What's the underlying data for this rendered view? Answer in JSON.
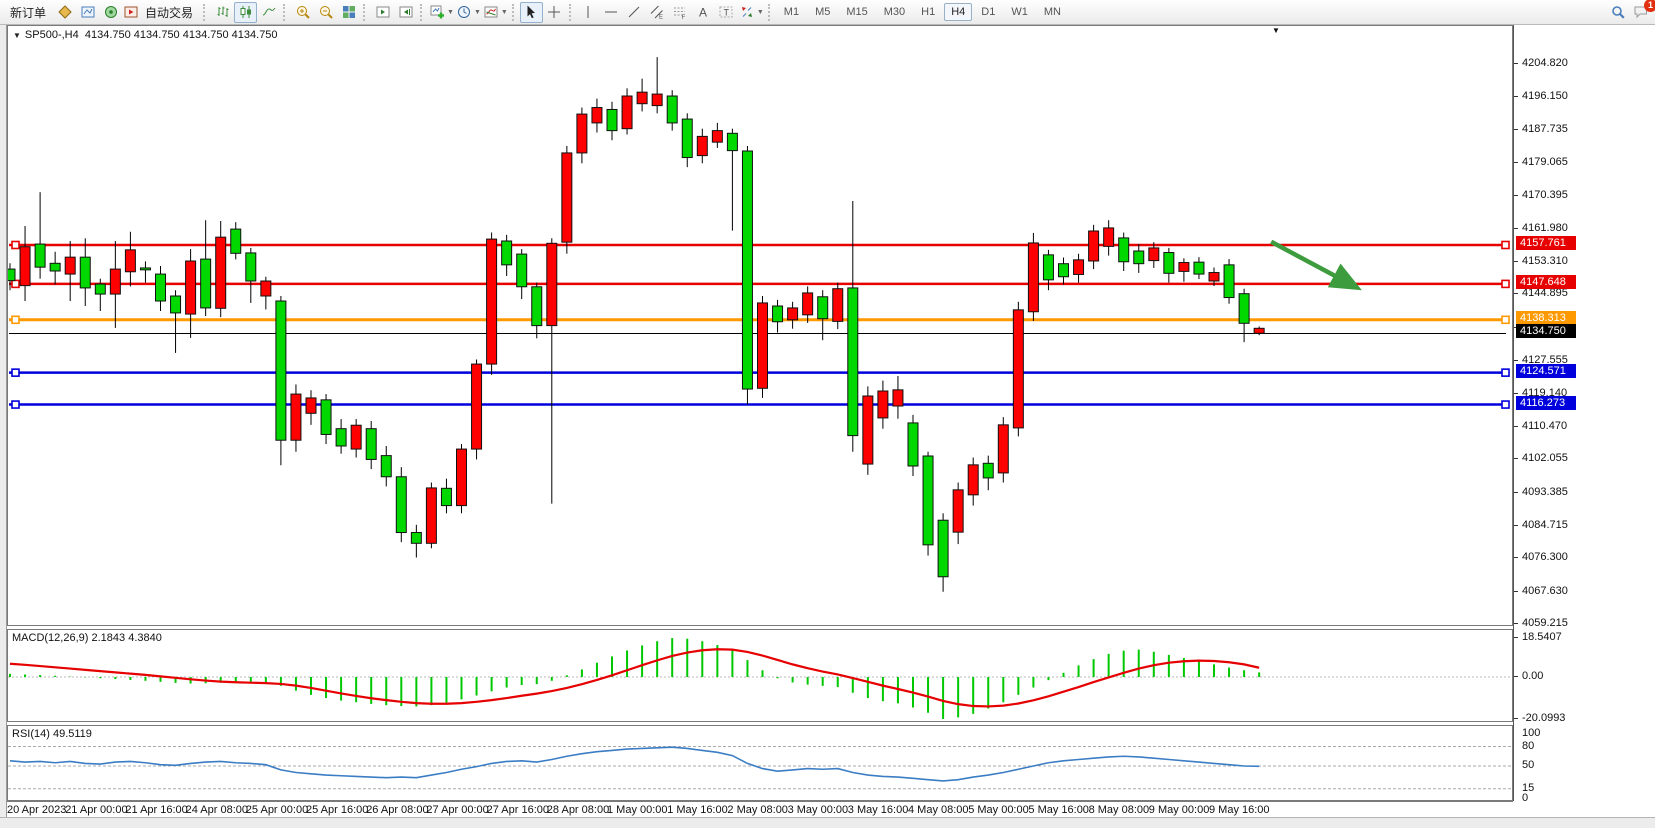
{
  "toolbar": {
    "items": [
      {
        "type": "button",
        "name": "new-order-button",
        "label": "新订单"
      },
      {
        "type": "icon",
        "name": "market-watch-icon"
      },
      {
        "type": "icon",
        "name": "data-window-icon"
      },
      {
        "type": "icon",
        "name": "signals-icon"
      },
      {
        "type": "iconlabel",
        "name": "autotrading-button",
        "icon": "autotrading-icon",
        "label": "自动交易"
      },
      {
        "type": "sep"
      },
      {
        "type": "icon",
        "name": "bar-chart-icon"
      },
      {
        "type": "icon",
        "name": "candlestick-chart-icon",
        "active": true
      },
      {
        "type": "icon",
        "name": "line-chart-icon"
      },
      {
        "type": "sep"
      },
      {
        "type": "icon",
        "name": "zoom-in-icon"
      },
      {
        "type": "icon",
        "name": "zoom-out-icon"
      },
      {
        "type": "icon",
        "name": "tile-windows-icon"
      },
      {
        "type": "sep"
      },
      {
        "type": "icon",
        "name": "auto-scroll-icon"
      },
      {
        "type": "icon",
        "name": "chart-shift-icon"
      },
      {
        "type": "sep"
      },
      {
        "type": "icon",
        "name": "new-chart-icon",
        "dropdown": true
      },
      {
        "type": "icon",
        "name": "periods-clock-icon",
        "dropdown": true
      },
      {
        "type": "icon",
        "name": "indicators-icon",
        "dropdown": true
      },
      {
        "type": "sep"
      },
      {
        "type": "icon",
        "name": "cursor-icon",
        "active": true
      },
      {
        "type": "icon",
        "name": "crosshair-icon"
      },
      {
        "type": "sep"
      },
      {
        "type": "icon",
        "name": "vertical-line-icon"
      },
      {
        "type": "icon",
        "name": "horizontal-line-icon"
      },
      {
        "type": "icon",
        "name": "trendline-icon"
      },
      {
        "type": "icon",
        "name": "equidistant-channel-icon"
      },
      {
        "type": "icon",
        "name": "fibonacci-icon"
      },
      {
        "type": "icon",
        "name": "text-icon"
      },
      {
        "type": "icon",
        "name": "text-label-icon"
      },
      {
        "type": "icon",
        "name": "arrows-icon",
        "dropdown": true
      },
      {
        "type": "sep"
      },
      {
        "type": "timeframes"
      },
      {
        "type": "spacer"
      },
      {
        "type": "icon",
        "name": "search-icon"
      },
      {
        "type": "icon",
        "name": "chat-icon",
        "badge": "1"
      }
    ],
    "timeframes": {
      "options": [
        "M1",
        "M5",
        "M15",
        "M30",
        "H1",
        "H4",
        "D1",
        "W1",
        "MN"
      ],
      "active": "H4"
    }
  },
  "chart": {
    "title": {
      "collapse_glyph": "▼",
      "symbol_period": "SP500-,H4",
      "ohlc": "4134.750 4134.750 4134.750 4134.750"
    },
    "shift_marker_glyph": "▼",
    "price_axis_ticks": [
      "4204.820",
      "4196.150",
      "4187.735",
      "4179.065",
      "4170.395",
      "4161.980",
      "4153.310",
      "4144.895",
      "4136.225",
      "4127.555",
      "4119.140",
      "4110.470",
      "4102.055",
      "4093.385",
      "4084.715",
      "4076.300",
      "4067.630",
      "4059.215"
    ],
    "hlines": [
      {
        "name": "resistance-line-1",
        "price": "4157.761",
        "color": "#e60000",
        "width": 2.5,
        "handles": true
      },
      {
        "name": "resistance-line-2",
        "price": "4147.648",
        "color": "#e60000",
        "width": 2.5,
        "handles": true
      },
      {
        "name": "pivot-line",
        "price": "4138.313",
        "color": "#ff9900",
        "width": 3,
        "handles": true
      },
      {
        "name": "current-price-line",
        "price": "4134.750",
        "color": "#000000",
        "width": 1,
        "handles": false
      },
      {
        "name": "support-line-1",
        "price": "4124.571",
        "color": "#0000dd",
        "width": 2.5,
        "handles": true
      },
      {
        "name": "support-line-2",
        "price": "4116.273",
        "color": "#0000dd",
        "width": 2.5,
        "handles": true
      }
    ],
    "colors": {
      "bull": "#ff0000",
      "bear": "#00d800",
      "wick": "#000000",
      "arrow": "#3d9c3d"
    },
    "arrow_annotation": {
      "from_index": 83.8,
      "from_price": 4158.6,
      "to_index": 89.3,
      "to_price": 4147.1
    },
    "candles": [
      [
        4151.5,
        4153,
        4146,
        4148.5
      ],
      [
        4147.2,
        4162.7,
        4143.2,
        4157.3
      ],
      [
        4158,
        4171.5,
        4149,
        4152
      ],
      [
        4153,
        4156,
        4147.5,
        4151
      ],
      [
        4150.2,
        4158.8,
        4143.2,
        4154.6
      ],
      [
        4154.6,
        4159.5,
        4141.9,
        4146.6
      ],
      [
        4147.6,
        4149,
        4140.6,
        4145
      ],
      [
        4145,
        4158.8,
        4136.2,
        4151.5
      ],
      [
        4150.8,
        4161.2,
        4147,
        4156.5
      ],
      [
        4151.8,
        4153.5,
        4148,
        4151.3
      ],
      [
        4150.2,
        4152.3,
        4140.6,
        4143.2
      ],
      [
        4144.5,
        4146,
        4129.7,
        4140.1
      ],
      [
        4139.8,
        4156.7,
        4133.6,
        4153.6
      ],
      [
        4154.1,
        4164.2,
        4139.3,
        4141.4
      ],
      [
        4141.3,
        4164,
        4139,
        4159.8
      ],
      [
        4161.9,
        4163.7,
        4154,
        4155.6
      ],
      [
        4155.7,
        4157,
        4142.7,
        4148.4
      ],
      [
        4144.5,
        4149.5,
        4141,
        4148.4
      ],
      [
        4143.2,
        4144.5,
        4100.5,
        4107
      ],
      [
        4107,
        4121.5,
        4104,
        4119
      ],
      [
        4114,
        4120,
        4111,
        4118
      ],
      [
        4117.5,
        4119,
        4106,
        4108.5
      ],
      [
        4110,
        4112.5,
        4103.5,
        4105.5
      ],
      [
        4104.7,
        4112.5,
        4102.5,
        4110.9
      ],
      [
        4110,
        4112,
        4099.5,
        4102
      ],
      [
        4103,
        4105.5,
        4095,
        4097.5
      ],
      [
        4097.5,
        4100,
        4080.5,
        4083
      ],
      [
        4083,
        4085,
        4076.5,
        4080.2
      ],
      [
        4080.2,
        4096,
        4078.9,
        4094.6
      ],
      [
        4094.5,
        4097,
        4088,
        4090
      ],
      [
        4090,
        4106,
        4088,
        4104.7
      ],
      [
        4104.7,
        4128,
        4102,
        4126.8
      ],
      [
        4126.8,
        4161,
        4124,
        4159.3
      ],
      [
        4158.8,
        4160.4,
        4149.7,
        4152.6
      ],
      [
        4155.4,
        4156.7,
        4143.7,
        4146.9
      ],
      [
        4146.9,
        4148,
        4133.5,
        4136.8
      ],
      [
        4136.8,
        4159.5,
        4090.5,
        4158.2
      ],
      [
        4158.5,
        4183.5,
        4155.5,
        4181.7
      ],
      [
        4181.7,
        4193.5,
        4179,
        4191.8
      ],
      [
        4189.5,
        4195.8,
        4187,
        4193.5
      ],
      [
        4193,
        4195,
        4185,
        4187.5
      ],
      [
        4188,
        4198.5,
        4186.5,
        4196.5
      ],
      [
        4194.5,
        4201,
        4192.5,
        4197.5
      ],
      [
        4194,
        4206.6,
        4192,
        4197
      ],
      [
        4196.5,
        4198,
        4187.5,
        4189.5
      ],
      [
        4190.5,
        4192,
        4178,
        4180.5
      ],
      [
        4181,
        4188,
        4179,
        4186
      ],
      [
        4184.5,
        4189.5,
        4183,
        4187.5
      ],
      [
        4186.8,
        4188,
        4161.5,
        4182.3
      ],
      [
        4182.2,
        4183.5,
        4116.3,
        4120.3
      ],
      [
        4120.5,
        4144.5,
        4118,
        4142.7
      ],
      [
        4141.9,
        4143.5,
        4135,
        4137.8
      ],
      [
        4138.3,
        4143,
        4136,
        4141.4
      ],
      [
        4139.6,
        4147,
        4137.5,
        4145.3
      ],
      [
        4144.3,
        4146,
        4133,
        4138.6
      ],
      [
        4137.9,
        4148,
        4135.9,
        4146.4
      ],
      [
        4146.6,
        4169.2,
        4104,
        4108.2
      ],
      [
        4100.8,
        4121,
        4098,
        4118.5
      ],
      [
        4112.8,
        4122.5,
        4110,
        4119.8
      ],
      [
        4115.9,
        4123.7,
        4112.6,
        4120.1
      ],
      [
        4111.5,
        4113.6,
        4097.7,
        4100.3
      ],
      [
        4102.9,
        4104,
        4077,
        4079.8
      ],
      [
        4086.2,
        4088,
        4067.6,
        4071.5
      ],
      [
        4083.1,
        4096,
        4080,
        4094.1
      ],
      [
        4092.8,
        4102.5,
        4090,
        4100.6
      ],
      [
        4101,
        4103,
        4094,
        4097.2
      ],
      [
        4098.5,
        4113,
        4096,
        4111
      ],
      [
        4110.2,
        4143,
        4108,
        4140.9
      ],
      [
        4140.4,
        4160.9,
        4138,
        4158.3
      ],
      [
        4155.2,
        4156.5,
        4146,
        4148.7
      ],
      [
        4152.9,
        4154.5,
        4147.5,
        4149.5
      ],
      [
        4150.1,
        4155.5,
        4148,
        4153.9
      ],
      [
        4153.6,
        4163,
        4151.5,
        4161.4
      ],
      [
        4157.4,
        4164.2,
        4155,
        4162.2
      ],
      [
        4159.6,
        4161,
        4151,
        4153.4
      ],
      [
        4156.2,
        4158,
        4150.5,
        4152.9
      ],
      [
        4153.7,
        4158.5,
        4151.8,
        4157
      ],
      [
        4155.8,
        4157,
        4148,
        4150.4
      ],
      [
        4150.9,
        4154.3,
        4148.2,
        4153.2
      ],
      [
        4153.3,
        4154.6,
        4148.9,
        4150.2
      ],
      [
        4148.4,
        4151.9,
        4147.1,
        4150.6
      ],
      [
        4152.6,
        4154.1,
        4142.5,
        4144.1
      ],
      [
        4145.1,
        4146.4,
        4132.5,
        4137.4
      ],
      [
        4134.8,
        4136.6,
        4134.3,
        4136.1
      ]
    ]
  },
  "macd": {
    "label": "MACD(12,26,9)",
    "value": "2.1843",
    "signal_value": "4.3840",
    "axis": [
      "18.5407",
      "0.00",
      "-20.0993"
    ],
    "colors": {
      "histogram": "#00c800",
      "signal": "#e60000"
    },
    "histogram": [
      1.5,
      1.2,
      0.9,
      0.6,
      0.2,
      -0.2,
      -0.6,
      -1.0,
      -1.4,
      -1.8,
      -2.3,
      -2.8,
      -3.1,
      -3.0,
      -2.7,
      -2.4,
      -2.3,
      -2.6,
      -4.2,
      -6.5,
      -8.5,
      -10.0,
      -11.2,
      -12.0,
      -12.8,
      -13.4,
      -13.8,
      -14.0,
      -13.4,
      -12.2,
      -10.6,
      -8.8,
      -6.8,
      -5.0,
      -3.8,
      -3.4,
      -1.8,
      0.8,
      3.6,
      6.8,
      9.8,
      12.6,
      15.0,
      17.0,
      18.5,
      18.2,
      17.0,
      15.2,
      12.6,
      8.0,
      3.2,
      -0.6,
      -2.6,
      -3.6,
      -4.2,
      -4.8,
      -7.5,
      -10.0,
      -11.5,
      -12.5,
      -14.5,
      -17.0,
      -20.1,
      -19.2,
      -17.5,
      -15.0,
      -12.0,
      -8.5,
      -5.0,
      -1.5,
      2.0,
      5.5,
      8.5,
      11.0,
      12.5,
      13.0,
      12.0,
      10.5,
      9.0,
      7.5,
      6.0,
      4.5,
      3.2,
      2.2
    ],
    "signal": [
      6.3,
      5.8,
      5.2,
      4.6,
      4.0,
      3.4,
      2.8,
      2.2,
      1.6,
      1.0,
      0.3,
      -0.4,
      -1.1,
      -1.7,
      -2.2,
      -2.5,
      -2.7,
      -2.9,
      -3.3,
      -4.1,
      -5.2,
      -6.5,
      -7.8,
      -9.0,
      -10.1,
      -11.0,
      -11.8,
      -12.4,
      -12.7,
      -12.7,
      -12.4,
      -11.8,
      -11.0,
      -10.0,
      -8.9,
      -7.9,
      -6.7,
      -5.2,
      -3.4,
      -1.4,
      0.8,
      3.2,
      5.6,
      7.9,
      10.0,
      11.6,
      12.7,
      13.2,
      13.0,
      11.9,
      10.2,
      8.1,
      6.0,
      4.2,
      2.6,
      1.2,
      -0.5,
      -2.3,
      -4.1,
      -5.7,
      -7.4,
      -9.3,
      -11.4,
      -12.9,
      -13.8,
      -14.0,
      -13.6,
      -12.6,
      -11.1,
      -9.2,
      -7.0,
      -4.8,
      -2.4,
      -0.2,
      2.0,
      4.0,
      5.6,
      6.8,
      7.5,
      7.8,
      7.6,
      7.0,
      6.0,
      4.4
    ]
  },
  "rsi": {
    "label": "RSI(14)",
    "value": "49.5119",
    "axis": [
      "100",
      "80",
      "50",
      "15",
      "0"
    ],
    "levels": [
      80,
      50,
      15
    ],
    "color": "#3b7dc4",
    "values": [
      58,
      56,
      57,
      55,
      57,
      54,
      53,
      56,
      57,
      55,
      52,
      51,
      54,
      56,
      57,
      55,
      54,
      52,
      44,
      40,
      38,
      36,
      35,
      34,
      33,
      32,
      33,
      32,
      36,
      40,
      45,
      49,
      54,
      57,
      58,
      56,
      60,
      65,
      69,
      72,
      74,
      76,
      77,
      78,
      79,
      77,
      74,
      71,
      66,
      54,
      46,
      42,
      44,
      46,
      45,
      46,
      40,
      36,
      34,
      33,
      31,
      29,
      27,
      29,
      33,
      36,
      40,
      45,
      50,
      55,
      58,
      60,
      62,
      64,
      65,
      64,
      62,
      60,
      58,
      56,
      54,
      52,
      50,
      49.5
    ]
  },
  "time_axis": {
    "labels": [
      "20 Apr 2023",
      "21 Apr 00:00",
      "21 Apr 16:00",
      "24 Apr 08:00",
      "25 Apr 00:00",
      "25 Apr 16:00",
      "26 Apr 08:00",
      "27 Apr 00:00",
      "27 Apr 16:00",
      "28 Apr 08:00",
      "1 May 00:00",
      "1 May 16:00",
      "2 May 08:00",
      "3 May 00:00",
      "3 May 16:00",
      "4 May 08:00",
      "5 May 00:00",
      "5 May 16:00",
      "8 May 08:00",
      "9 May 00:00",
      "9 May 16:00"
    ]
  }
}
